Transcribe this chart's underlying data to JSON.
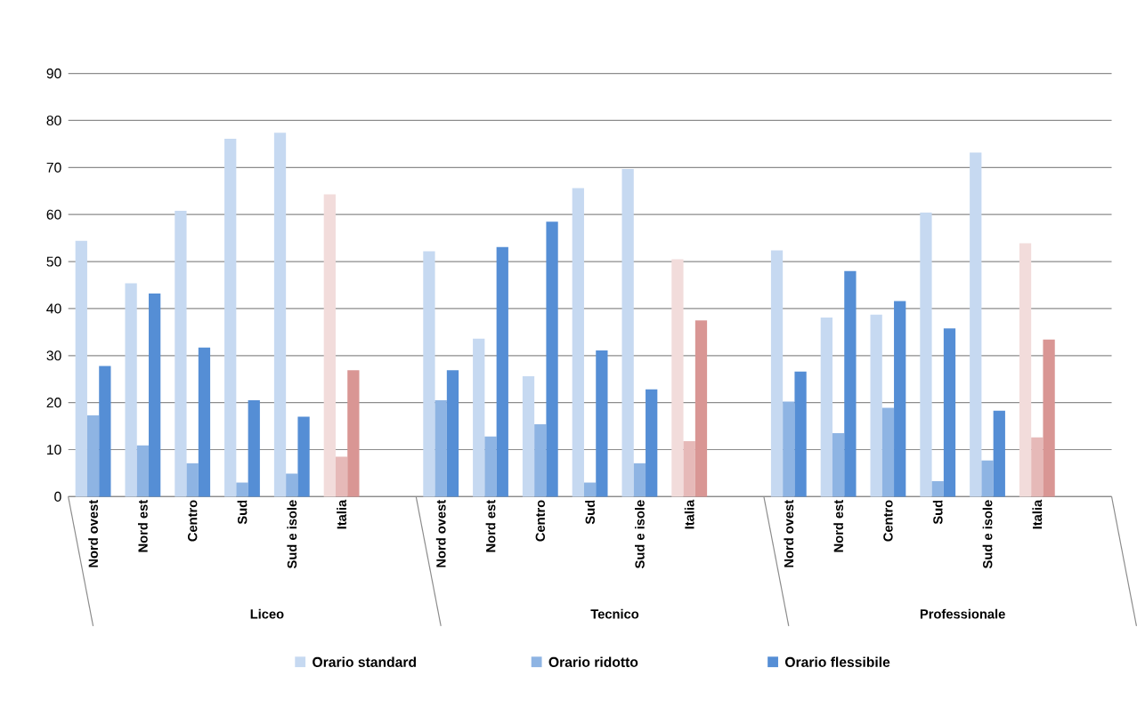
{
  "chart_data": {
    "type": "bar",
    "categories": [
      "Nord ovest",
      "Nord est",
      "Centro",
      "Sud",
      "Sud e isole",
      "Italia",
      null,
      "Nord ovest",
      "Nord est",
      "Centro",
      "Sud",
      "Sud e isole",
      "Italia",
      null,
      "Nord ovest",
      "Nord est",
      "Centro",
      "Sud",
      "Sud e isole",
      "Italia",
      null
    ],
    "series": [
      {
        "name": "Orario standard",
        "color": "#c6d9f1",
        "colors": [
          "#c6d9f1",
          "#c6d9f1",
          "#c6d9f1",
          "#c6d9f1",
          "#c6d9f1",
          "#f2dcdb",
          null,
          "#c6d9f1",
          "#c6d9f1",
          "#c6d9f1",
          "#c6d9f1",
          "#c6d9f1",
          "#f2dcdb",
          null,
          "#c6d9f1",
          "#c6d9f1",
          "#c6d9f1",
          "#c6d9f1",
          "#c6d9f1",
          "#f2dcdb",
          null
        ],
        "values": [
          54.4,
          45.4,
          60.8,
          76.1,
          77.4,
          64.3,
          null,
          52.2,
          33.6,
          25.6,
          65.6,
          69.7,
          50.5,
          null,
          52.4,
          38.1,
          38.7,
          60.4,
          73.2,
          53.9,
          null
        ]
      },
      {
        "name": "Orario ridotto",
        "color": "#8eb4e3",
        "colors": [
          "#8eb4e3",
          "#8eb4e3",
          "#8eb4e3",
          "#8eb4e3",
          "#8eb4e3",
          "#e6b9b8",
          null,
          "#8eb4e3",
          "#8eb4e3",
          "#8eb4e3",
          "#8eb4e3",
          "#8eb4e3",
          "#e6b9b8",
          null,
          "#8eb4e3",
          "#8eb4e3",
          "#8eb4e3",
          "#8eb4e3",
          "#8eb4e3",
          "#e6b9b8",
          null
        ],
        "values": [
          17.3,
          10.9,
          7.1,
          3.0,
          4.9,
          8.5,
          null,
          20.5,
          12.8,
          15.4,
          3.0,
          7.1,
          11.8,
          null,
          20.2,
          13.5,
          18.9,
          3.3,
          7.7,
          12.6,
          null
        ]
      },
      {
        "name": "Orario flessibile",
        "color": "#558ed5",
        "colors": [
          "#558ed5",
          "#558ed5",
          "#558ed5",
          "#558ed5",
          "#558ed5",
          "#d99694",
          null,
          "#558ed5",
          "#558ed5",
          "#558ed5",
          "#558ed5",
          "#558ed5",
          "#d99694",
          null,
          "#558ed5",
          "#558ed5",
          "#558ed5",
          "#558ed5",
          "#558ed5",
          "#d99694",
          null
        ],
        "values": [
          27.8,
          43.2,
          31.7,
          20.5,
          17.0,
          26.9,
          null,
          26.9,
          53.1,
          58.5,
          31.1,
          22.8,
          37.5,
          null,
          26.6,
          48.0,
          41.6,
          35.8,
          18.3,
          33.4,
          null
        ]
      }
    ],
    "annotations": [
      "Liceo",
      "Tecnico",
      "Professionale"
    ],
    "ylim": [
      0,
      90
    ],
    "yticks": [
      0,
      10,
      20,
      30,
      40,
      50,
      60,
      70,
      80,
      90
    ],
    "grid": "y",
    "legend": "bottom"
  }
}
